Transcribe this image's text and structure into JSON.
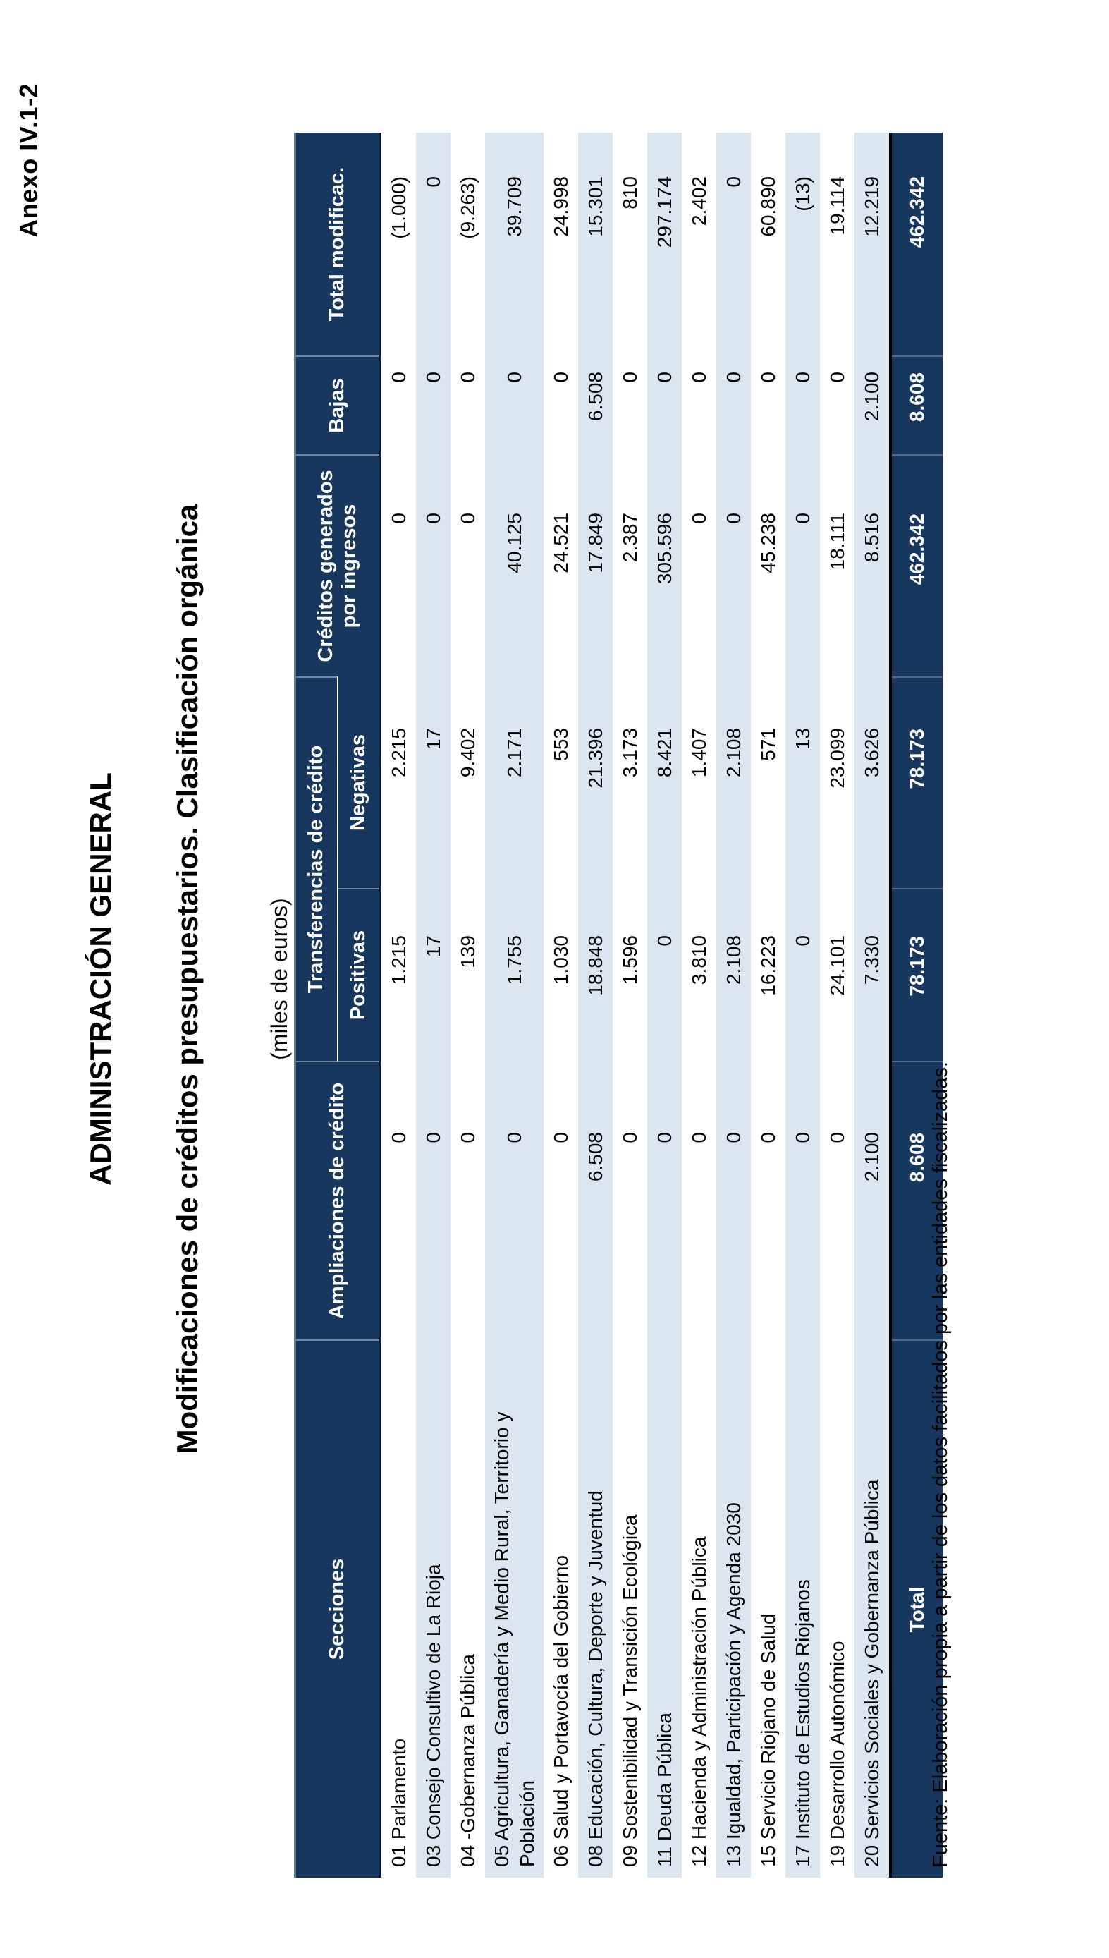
{
  "page": {
    "annex_label": "Anexo IV.1-2",
    "title": "ADMINISTRACIÓN GENERAL",
    "subtitle": "Modificaciones de créditos presupuestarios. Clasificación orgánica",
    "units_note": "(miles de euros)",
    "source_note": "Fuente: Elaboración propia a partir de los datos facilitados por las entidades fiscalizadas."
  },
  "colors": {
    "header_bg": "#17375E",
    "row_stripe": "#DCE6F1",
    "top_rule": "#5B7795",
    "total_rule": "#000000"
  },
  "table": {
    "headers": {
      "secciones": "Secciones",
      "ampliaciones": "Ampliaciones de crédito",
      "transferencias": "Transferencias de crédito",
      "positivas": "Positivas",
      "negativas": "Negativas",
      "creditos": "Créditos generados por ingresos",
      "bajas": "Bajas",
      "total_modificac": "Total modificac."
    },
    "rows": [
      {
        "seccion": "01 Parlamento",
        "ampliaciones": "0",
        "positivas": "1.215",
        "negativas": "2.215",
        "creditos": "0",
        "bajas": "0",
        "total": "(1.000)"
      },
      {
        "seccion": "03 Consejo Consultivo de La Rioja",
        "ampliaciones": "0",
        "positivas": "17",
        "negativas": "17",
        "creditos": "0",
        "bajas": "0",
        "total": "0"
      },
      {
        "seccion": "04 -Gobernanza Pública",
        "ampliaciones": "0",
        "positivas": "139",
        "negativas": "9.402",
        "creditos": "0",
        "bajas": "0",
        "total": "(9.263)"
      },
      {
        "seccion": "05 Agricultura, Ganadería y Medio Rural, Territorio y\nPoblación",
        "ampliaciones": "0",
        "positivas": "1.755",
        "negativas": "2.171",
        "creditos": "40.125",
        "bajas": "0",
        "total": "39.709"
      },
      {
        "seccion": "06 Salud y Portavocía del Gobierno",
        "ampliaciones": "0",
        "positivas": "1.030",
        "negativas": "553",
        "creditos": "24.521",
        "bajas": "0",
        "total": "24.998"
      },
      {
        "seccion": "08 Educación, Cultura, Deporte y Juventud",
        "ampliaciones": "6.508",
        "positivas": "18.848",
        "negativas": "21.396",
        "creditos": "17.849",
        "bajas": "6.508",
        "total": "15.301"
      },
      {
        "seccion": "09 Sostenibilidad y Transición Ecológica",
        "ampliaciones": "0",
        "positivas": "1.596",
        "negativas": "3.173",
        "creditos": "2.387",
        "bajas": "0",
        "total": "810"
      },
      {
        "seccion": "11 Deuda Pública",
        "ampliaciones": "0",
        "positivas": "0",
        "negativas": "8.421",
        "creditos": "305.596",
        "bajas": "0",
        "total": "297.174"
      },
      {
        "seccion": "12 Hacienda y Administración Pública",
        "ampliaciones": "0",
        "positivas": "3.810",
        "negativas": "1.407",
        "creditos": "0",
        "bajas": "0",
        "total": "2.402"
      },
      {
        "seccion": "13 Igualdad, Participación y Agenda 2030",
        "ampliaciones": "0",
        "positivas": "2.108",
        "negativas": "2.108",
        "creditos": "0",
        "bajas": "0",
        "total": "0"
      },
      {
        "seccion": "15 Servicio Riojano de Salud",
        "ampliaciones": "0",
        "positivas": "16.223",
        "negativas": "571",
        "creditos": "45.238",
        "bajas": "0",
        "total": "60.890"
      },
      {
        "seccion": "17 Instituto de Estudios Riojanos",
        "ampliaciones": "0",
        "positivas": "0",
        "negativas": "13",
        "creditos": "0",
        "bajas": "0",
        "total": "(13)"
      },
      {
        "seccion": "19 Desarrollo Autonómico",
        "ampliaciones": "0",
        "positivas": "24.101",
        "negativas": "23.099",
        "creditos": "18.111",
        "bajas": "0",
        "total": "19.114"
      },
      {
        "seccion": "20 Servicios Sociales y Gobernanza Pública",
        "ampliaciones": "2.100",
        "positivas": "7.330",
        "negativas": "3.626",
        "creditos": "8.516",
        "bajas": "2.100",
        "total": "12.219"
      }
    ],
    "total_row": {
      "seccion": "Total",
      "ampliaciones": "8.608",
      "positivas": "78.173",
      "negativas": "78.173",
      "creditos": "462.342",
      "bajas": "8.608",
      "total": "462.342"
    }
  }
}
